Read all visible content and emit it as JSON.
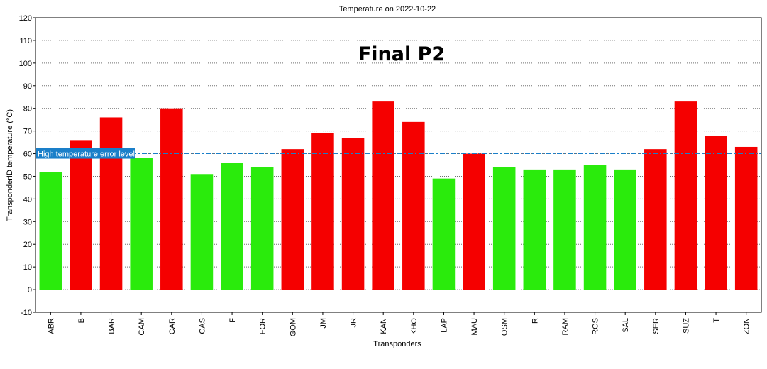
{
  "chart_data": {
    "type": "bar",
    "title": "Temperature on 2022-10-22",
    "annotation": "Final P2",
    "xlabel": "Transponders",
    "ylabel": "TransponderID temperature (°C)",
    "ylim": [
      -10,
      120
    ],
    "yticks": [
      -10,
      0,
      10,
      20,
      30,
      40,
      50,
      60,
      70,
      80,
      90,
      100,
      110,
      120
    ],
    "grid": true,
    "categories": [
      "ABR",
      "B",
      "BAR",
      "CAM",
      "CAR",
      "CAS",
      "F",
      "FOR",
      "GOM",
      "JM",
      "JR",
      "KAN",
      "KHO",
      "LAP",
      "MAU",
      "OSM",
      "R",
      "RAM",
      "ROS",
      "SAL",
      "SER",
      "SUZ",
      "T",
      "ZON"
    ],
    "values": [
      52,
      66,
      76,
      58,
      80,
      51,
      56,
      54,
      62,
      69,
      67,
      83,
      74,
      49,
      60,
      54,
      53,
      53,
      55,
      53,
      62,
      83,
      68,
      63
    ],
    "threshold": {
      "label": "High temperature error level",
      "value": 60,
      "color": "#1a7fc9"
    },
    "colors": {
      "ok": "#2aeb0c",
      "error": "#f50000"
    }
  }
}
